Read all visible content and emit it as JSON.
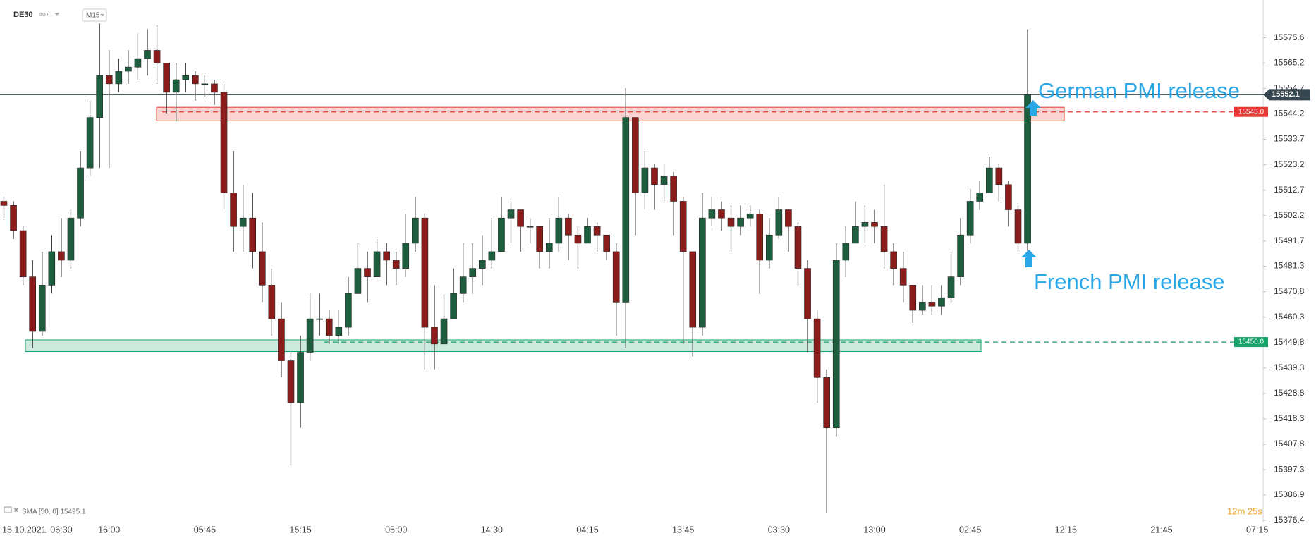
{
  "header": {
    "symbol": "DE30",
    "market": "IND",
    "timeframe": "M15"
  },
  "indicator": "SMA [50, 0] 15495.1",
  "countdown": "12m 25s",
  "chart_data": {
    "type": "candlestick",
    "up_color": "#1e5e3e",
    "down_color": "#8b1c1c",
    "categories": [
      null,
      null,
      "15.10.2021",
      null,
      null,
      null,
      "06:30",
      null,
      null,
      null,
      null,
      "16:00",
      null,
      null,
      null,
      null,
      null,
      null,
      null,
      null,
      null,
      "05:45",
      null,
      null,
      null,
      null,
      null,
      null,
      null,
      null,
      null,
      "15:15",
      null,
      null,
      null,
      null,
      null,
      null,
      null,
      null,
      null,
      "05:00",
      null,
      null,
      null,
      null,
      null,
      null,
      null,
      null,
      null,
      "14:30",
      null,
      null,
      null,
      null,
      null,
      null,
      null,
      null,
      null,
      "04:15",
      null,
      null,
      null,
      null,
      null,
      null,
      null,
      null,
      null,
      "13:45",
      null,
      null,
      null,
      null,
      null,
      null,
      null,
      null,
      null,
      "03:30",
      null,
      null,
      null,
      null,
      null,
      null,
      null,
      null,
      null,
      "13:00",
      null,
      null,
      null,
      null,
      null,
      null,
      null,
      null,
      null,
      "02:45",
      null,
      null,
      null,
      null,
      null,
      null,
      null,
      null,
      null,
      "12:15",
      null,
      null,
      null,
      null,
      null,
      null,
      null,
      null,
      null,
      "21:45",
      null,
      null,
      null,
      null,
      null,
      null,
      null,
      null,
      null,
      "07:15"
    ],
    "open": [
      15508.1,
      15506.4,
      15496.0,
      15476.9,
      15454.4,
      15473.5,
      15487.3,
      15483.8,
      15501.2,
      15521.9,
      15542.7,
      15560.0,
      15556.6,
      15561.8,
      15563.5,
      15567.0,
      15570.4,
      15565.2,
      15553.1,
      15558.3,
      15560.0,
      15556.6,
      15556.6,
      15553.1,
      15511.6,
      15497.7,
      15501.2,
      15487.3,
      15473.5,
      15459.6,
      15442.3,
      15425.0,
      15445.8,
      15459.6,
      15459.6,
      15452.7,
      15456.1,
      15470.0,
      15480.4,
      15476.9,
      15487.3,
      15483.8,
      15480.4,
      15490.8,
      15501.2,
      15456.1,
      15449.2,
      15459.6,
      15470.0,
      15476.9,
      15480.4,
      15483.8,
      15487.3,
      15501.2,
      15504.6,
      15497.7,
      15497.7,
      15487.3,
      15490.8,
      15501.2,
      15494.2,
      15490.8,
      15497.7,
      15494.2,
      15487.3,
      15466.5,
      15542.7,
      15511.6,
      15521.9,
      15515.0,
      15518.5,
      15508.1,
      15487.3,
      15456.1,
      15501.2,
      15504.6,
      15501.2,
      15497.7,
      15501.2,
      15502.9,
      15483.8,
      15494.2,
      15504.6,
      15497.7,
      15480.4,
      15459.6,
      15435.4,
      15414.6,
      15483.8,
      15490.8,
      15497.7,
      15499.4,
      15497.7,
      15487.3,
      15480.4,
      15473.5,
      15463.1,
      15466.5,
      15464.8,
      15468.3,
      15476.9,
      15494.2,
      15508.1,
      15511.6,
      15521.9,
      15515.0,
      15504.6,
      15490.8,
      null,
      null,
      null,
      null,
      null,
      null,
      null,
      null,
      null,
      null,
      null,
      null,
      null,
      null,
      null,
      null,
      null,
      null,
      null,
      null,
      null,
      null,
      null,
      null
    ],
    "high": [
      15509.8,
      15508.1,
      15497.7,
      15483.8,
      15487.3,
      15494.2,
      15501.2,
      15504.6,
      15528.9,
      15549.6,
      15581.5,
      15570.4,
      15567.0,
      15570.4,
      15577.3,
      15579.1,
      15580.8,
      15565.2,
      15565.2,
      15565.2,
      15561.8,
      15560.0,
      15558.3,
      15556.6,
      15528.9,
      15515.0,
      15511.6,
      15499.4,
      15480.4,
      15466.5,
      15445.8,
      15452.7,
      15470.0,
      15470.0,
      15463.1,
      15463.1,
      15476.9,
      15490.8,
      15487.3,
      15492.5,
      15490.8,
      15487.3,
      15502.9,
      15509.8,
      15502.9,
      15473.5,
      15470.0,
      15480.4,
      15490.8,
      15490.8,
      15494.2,
      15501.2,
      15509.8,
      15508.1,
      15504.6,
      15501.2,
      15497.7,
      15501.2,
      15509.8,
      15502.9,
      15497.7,
      15501.2,
      15499.4,
      15494.2,
      15490.8,
      15554.8,
      15542.7,
      15528.9,
      15523.7,
      15523.7,
      15520.2,
      15509.8,
      15487.3,
      15511.6,
      15509.8,
      15508.1,
      15506.4,
      15506.4,
      15506.4,
      15504.6,
      15501.2,
      15509.8,
      15504.6,
      15499.4,
      15483.8,
      15463.1,
      15438.8,
      15490.8,
      15497.7,
      15508.1,
      15506.4,
      15504.6,
      15515.0,
      15490.8,
      15487.3,
      15473.5,
      15473.5,
      15473.5,
      15473.5,
      15487.3,
      15501.2,
      15513.3,
      15516.7,
      15526.4,
      15523.7,
      15516.7,
      15506.4,
      15579.1,
      null,
      null,
      null,
      null,
      null,
      null,
      null,
      null,
      null,
      null,
      null,
      null,
      null,
      null,
      null,
      null,
      null,
      null,
      null,
      null,
      null,
      null,
      null,
      null
    ],
    "low": [
      15501.2,
      15492.5,
      15473.5,
      15447.5,
      15452.7,
      15470.0,
      15476.9,
      15480.4,
      15497.7,
      15518.5,
      15521.9,
      15521.9,
      15553.1,
      15556.6,
      15558.3,
      15560.0,
      15556.6,
      15544.4,
      15541.0,
      15553.1,
      15549.6,
      15551.4,
      15547.9,
      15504.6,
      15487.3,
      15487.3,
      15480.4,
      15466.5,
      15452.7,
      15435.4,
      15399.0,
      15414.6,
      15442.3,
      15452.7,
      15449.2,
      15449.2,
      15452.7,
      15470.0,
      15466.5,
      15476.9,
      15473.5,
      15473.5,
      15476.9,
      15487.3,
      15438.8,
      15438.8,
      15449.2,
      15459.6,
      15466.5,
      15470.0,
      15473.5,
      15480.4,
      15487.3,
      15490.8,
      15487.3,
      15490.8,
      15480.4,
      15480.4,
      15487.3,
      15483.8,
      15480.4,
      15490.8,
      15487.3,
      15483.8,
      15452.7,
      15447.5,
      15494.2,
      15504.6,
      15504.6,
      15508.1,
      15494.2,
      15449.2,
      15444.0,
      15452.7,
      15497.7,
      15496.0,
      15487.3,
      15494.2,
      15497.7,
      15470.0,
      15480.4,
      15492.5,
      15487.3,
      15473.5,
      15445.8,
      15425.0,
      15379.3,
      15411.1,
      15476.9,
      15490.8,
      15490.8,
      15490.8,
      15480.4,
      15473.5,
      15466.5,
      15457.9,
      15461.3,
      15461.3,
      15461.3,
      15466.5,
      15473.5,
      15490.8,
      15504.6,
      15511.6,
      15508.1,
      15497.7,
      15487.3,
      15485.6,
      null,
      null,
      null,
      null,
      null,
      null,
      null,
      null,
      null,
      null,
      null,
      null,
      null,
      null,
      null,
      null,
      null,
      null,
      null,
      null,
      null,
      null,
      null,
      null
    ],
    "close": [
      15506.4,
      15496.0,
      15476.9,
      15454.4,
      15473.5,
      15487.3,
      15483.8,
      15501.2,
      15521.9,
      15542.7,
      15560.0,
      15556.6,
      15561.8,
      15563.5,
      15567.0,
      15570.4,
      15565.2,
      15553.1,
      15558.3,
      15560.0,
      15556.6,
      15556.6,
      15553.1,
      15511.6,
      15497.7,
      15501.2,
      15487.3,
      15473.5,
      15459.6,
      15442.3,
      15425.0,
      15445.8,
      15459.6,
      15459.6,
      15452.7,
      15456.1,
      15470.0,
      15480.4,
      15476.9,
      15487.3,
      15483.8,
      15480.4,
      15490.8,
      15501.2,
      15456.1,
      15449.2,
      15459.6,
      15470.0,
      15476.9,
      15480.4,
      15483.8,
      15487.3,
      15501.2,
      15504.6,
      15497.7,
      15497.7,
      15487.3,
      15490.8,
      15501.2,
      15494.2,
      15490.8,
      15497.7,
      15494.2,
      15487.3,
      15466.5,
      15542.7,
      15511.6,
      15521.9,
      15515.0,
      15518.5,
      15508.1,
      15487.3,
      15456.1,
      15501.2,
      15504.6,
      15501.2,
      15497.7,
      15501.2,
      15502.9,
      15483.8,
      15494.2,
      15504.6,
      15497.7,
      15480.4,
      15459.6,
      15435.4,
      15414.6,
      15483.8,
      15490.8,
      15497.7,
      15499.4,
      15497.7,
      15487.3,
      15480.4,
      15473.5,
      15463.1,
      15466.5,
      15464.8,
      15468.3,
      15476.9,
      15494.2,
      15508.1,
      15511.6,
      15521.9,
      15515.0,
      15504.6,
      15490.8,
      15552.1,
      null,
      null,
      null,
      null,
      null,
      null,
      null,
      null,
      null,
      null,
      null,
      null,
      null,
      null,
      null,
      null,
      null,
      null,
      null,
      null,
      null,
      null,
      null,
      null
    ],
    "ylim": [
      15375.8,
      15591.2
    ],
    "yticks": [
      15575.6,
      15565.2,
      15554.7,
      15544.2,
      15533.7,
      15523.2,
      15512.7,
      15502.2,
      15491.7,
      15481.3,
      15470.8,
      15460.3,
      15449.8,
      15439.3,
      15428.8,
      15418.3,
      15407.8,
      15397.3,
      15386.9,
      15376.4
    ],
    "current_price": 15552.1,
    "zones": [
      {
        "top": 15546.9,
        "bottom": 15541.3,
        "color": "#e53935"
      },
      {
        "top": 15450.9,
        "bottom": 15446.1,
        "color": "#17a26b"
      }
    ],
    "levels": [
      {
        "value": 15545,
        "label": "15545.0",
        "color": "#e53935"
      },
      {
        "value": 15450,
        "label": "15450.0",
        "color": "#17a26b"
      }
    ],
    "annotations": [
      {
        "text": "German PMI release",
        "color": "#2aa7e6"
      },
      {
        "text": "French PMI release",
        "color": "#2aa7e6"
      }
    ]
  }
}
